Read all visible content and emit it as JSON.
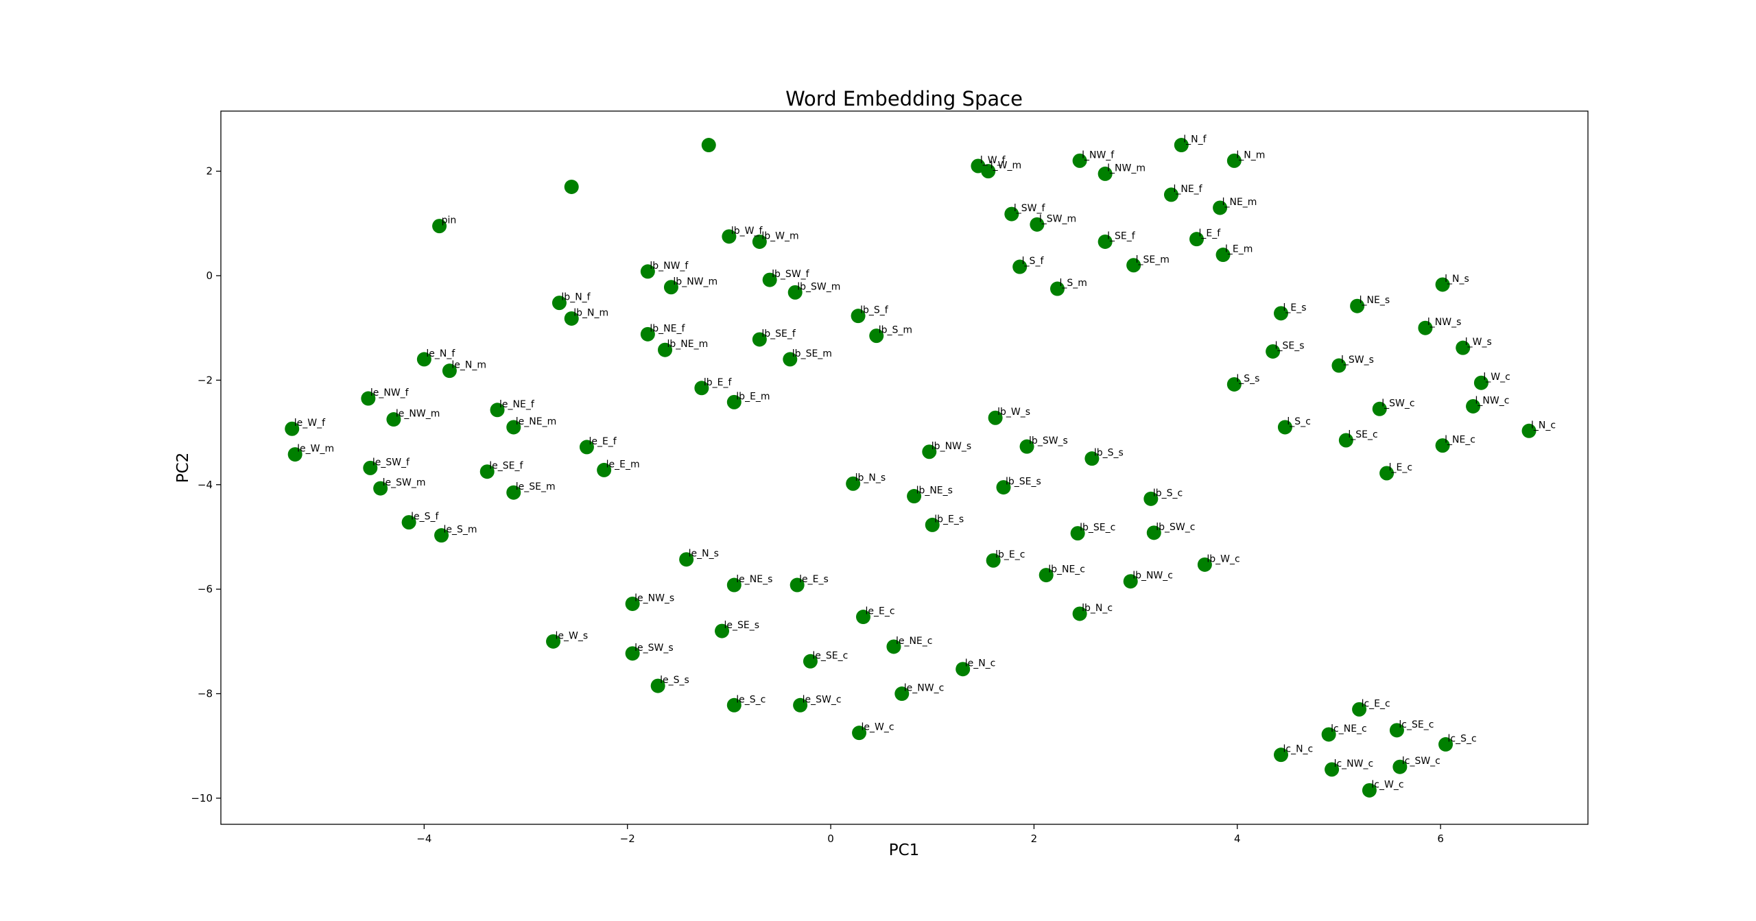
{
  "chart_data": {
    "type": "scatter",
    "title": "Word Embedding Space",
    "xlabel": "PC1",
    "ylabel": "PC2",
    "xlim": [
      -6.0,
      7.45
    ],
    "ylim": [
      -10.5,
      3.15
    ],
    "xticks": [
      -4,
      -2,
      0,
      2,
      4,
      6
    ],
    "yticks": [
      -10,
      -8,
      -6,
      -4,
      -2,
      0,
      2
    ],
    "grid": false,
    "marker_color": "#008000",
    "points": [
      {
        "label": "",
        "x": -1.2,
        "y": 2.5
      },
      {
        "label": "",
        "x": -2.55,
        "y": 1.7
      },
      {
        "label": "pin",
        "x": -3.85,
        "y": 0.95
      },
      {
        "label": "l_W_f",
        "x": 1.45,
        "y": 2.1
      },
      {
        "label": "l_W_m",
        "x": 1.55,
        "y": 2.0
      },
      {
        "label": "l_NW_f",
        "x": 2.45,
        "y": 2.2
      },
      {
        "label": "l_NW_m",
        "x": 2.7,
        "y": 1.95
      },
      {
        "label": "l_N_f",
        "x": 3.45,
        "y": 2.5
      },
      {
        "label": "l_N_m",
        "x": 3.97,
        "y": 2.2
      },
      {
        "label": "l_NE_f",
        "x": 3.35,
        "y": 1.55
      },
      {
        "label": "l_NE_m",
        "x": 3.83,
        "y": 1.3
      },
      {
        "label": "l_SW_f",
        "x": 1.78,
        "y": 1.18
      },
      {
        "label": "l_SW_m",
        "x": 2.03,
        "y": 0.98
      },
      {
        "label": "l_SE_f",
        "x": 2.7,
        "y": 0.65
      },
      {
        "label": "l_E_f",
        "x": 3.6,
        "y": 0.7
      },
      {
        "label": "l_E_m",
        "x": 3.86,
        "y": 0.4
      },
      {
        "label": "l_S_f",
        "x": 1.86,
        "y": 0.17
      },
      {
        "label": "l_SE_m",
        "x": 2.98,
        "y": 0.2
      },
      {
        "label": "l_S_m",
        "x": 2.23,
        "y": -0.25
      },
      {
        "label": "lb_W_f",
        "x": -1.0,
        "y": 0.75
      },
      {
        "label": "lb_W_m",
        "x": -0.7,
        "y": 0.65
      },
      {
        "label": "lb_NW_f",
        "x": -1.8,
        "y": 0.08
      },
      {
        "label": "lb_NW_m",
        "x": -1.57,
        "y": -0.22
      },
      {
        "label": "lb_SW_f",
        "x": -0.6,
        "y": -0.08
      },
      {
        "label": "lb_SW_m",
        "x": -0.35,
        "y": -0.32
      },
      {
        "label": "lb_N_f",
        "x": -2.67,
        "y": -0.52
      },
      {
        "label": "lb_N_m",
        "x": -2.55,
        "y": -0.82
      },
      {
        "label": "lb_S_f",
        "x": 0.27,
        "y": -0.77
      },
      {
        "label": "lb_S_m",
        "x": 0.45,
        "y": -1.15
      },
      {
        "label": "lb_NE_f",
        "x": -1.8,
        "y": -1.12
      },
      {
        "label": "lb_NE_m",
        "x": -1.63,
        "y": -1.42
      },
      {
        "label": "lb_SE_f",
        "x": -0.7,
        "y": -1.22
      },
      {
        "label": "lb_SE_m",
        "x": -0.4,
        "y": -1.6
      },
      {
        "label": "lb_E_f",
        "x": -1.27,
        "y": -2.15
      },
      {
        "label": "lb_E_m",
        "x": -0.95,
        "y": -2.42
      },
      {
        "label": "le_N_f",
        "x": -4.0,
        "y": -1.6
      },
      {
        "label": "le_N_m",
        "x": -3.75,
        "y": -1.82
      },
      {
        "label": "le_NW_f",
        "x": -4.55,
        "y": -2.35
      },
      {
        "label": "le_NW_m",
        "x": -4.3,
        "y": -2.75
      },
      {
        "label": "le_NE_f",
        "x": -3.28,
        "y": -2.57
      },
      {
        "label": "le_NE_m",
        "x": -3.12,
        "y": -2.9
      },
      {
        "label": "le_W_f",
        "x": -5.3,
        "y": -2.93
      },
      {
        "label": "le_W_m",
        "x": -5.27,
        "y": -3.42
      },
      {
        "label": "le_E_f",
        "x": -2.4,
        "y": -3.28
      },
      {
        "label": "le_E_m",
        "x": -2.23,
        "y": -3.72
      },
      {
        "label": "le_SW_f",
        "x": -4.53,
        "y": -3.68
      },
      {
        "label": "le_SW_m",
        "x": -4.43,
        "y": -4.07
      },
      {
        "label": "le_SE_f",
        "x": -3.38,
        "y": -3.75
      },
      {
        "label": "le_SE_m",
        "x": -3.12,
        "y": -4.15
      },
      {
        "label": "le_S_f",
        "x": -4.15,
        "y": -4.72
      },
      {
        "label": "le_S_m",
        "x": -3.83,
        "y": -4.97
      },
      {
        "label": "l_N_s",
        "x": 6.02,
        "y": -0.17
      },
      {
        "label": "l_E_s",
        "x": 4.43,
        "y": -0.72
      },
      {
        "label": "l_NE_s",
        "x": 5.18,
        "y": -0.58
      },
      {
        "label": "l_NW_s",
        "x": 5.85,
        "y": -1.0
      },
      {
        "label": "l_W_s",
        "x": 6.22,
        "y": -1.38
      },
      {
        "label": "l_SE_s",
        "x": 4.35,
        "y": -1.45
      },
      {
        "label": "l_SW_s",
        "x": 5.0,
        "y": -1.72
      },
      {
        "label": "l_S_s",
        "x": 3.97,
        "y": -2.08
      },
      {
        "label": "l_W_c",
        "x": 6.4,
        "y": -2.05
      },
      {
        "label": "l_NW_c",
        "x": 6.32,
        "y": -2.5
      },
      {
        "label": "l_SW_c",
        "x": 5.4,
        "y": -2.55
      },
      {
        "label": "l_S_c",
        "x": 4.47,
        "y": -2.9
      },
      {
        "label": "l_N_c",
        "x": 6.87,
        "y": -2.97
      },
      {
        "label": "l_SE_c",
        "x": 5.07,
        "y": -3.15
      },
      {
        "label": "l_NE_c",
        "x": 6.02,
        "y": -3.25
      },
      {
        "label": "l_E_c",
        "x": 5.47,
        "y": -3.78
      },
      {
        "label": "lb_W_s",
        "x": 1.62,
        "y": -2.72
      },
      {
        "label": "lb_NW_s",
        "x": 0.97,
        "y": -3.37
      },
      {
        "label": "lb_SW_s",
        "x": 1.93,
        "y": -3.27
      },
      {
        "label": "lb_S_s",
        "x": 2.57,
        "y": -3.5
      },
      {
        "label": "lb_N_s",
        "x": 0.22,
        "y": -3.98
      },
      {
        "label": "lb_NE_s",
        "x": 0.82,
        "y": -4.22
      },
      {
        "label": "lb_SE_s",
        "x": 1.7,
        "y": -4.05
      },
      {
        "label": "lb_S_c",
        "x": 3.15,
        "y": -4.27
      },
      {
        "label": "lb_E_s",
        "x": 1.0,
        "y": -4.77
      },
      {
        "label": "lb_SE_c",
        "x": 2.43,
        "y": -4.93
      },
      {
        "label": "lb_SW_c",
        "x": 3.18,
        "y": -4.92
      },
      {
        "label": "lb_E_c",
        "x": 1.6,
        "y": -5.45
      },
      {
        "label": "lb_W_c",
        "x": 3.68,
        "y": -5.53
      },
      {
        "label": "lb_NE_c",
        "x": 2.12,
        "y": -5.73
      },
      {
        "label": "lb_NW_c",
        "x": 2.95,
        "y": -5.85
      },
      {
        "label": "lb_N_c",
        "x": 2.45,
        "y": -6.47
      },
      {
        "label": "le_N_s",
        "x": -1.42,
        "y": -5.43
      },
      {
        "label": "le_NE_s",
        "x": -0.95,
        "y": -5.92
      },
      {
        "label": "le_E_s",
        "x": -0.33,
        "y": -5.92
      },
      {
        "label": "le_NW_s",
        "x": -1.95,
        "y": -6.28
      },
      {
        "label": "le_E_c",
        "x": 0.32,
        "y": -6.53
      },
      {
        "label": "le_SE_s",
        "x": -1.07,
        "y": -6.8
      },
      {
        "label": "le_W_s",
        "x": -2.73,
        "y": -7.0
      },
      {
        "label": "le_NE_c",
        "x": 0.62,
        "y": -7.1
      },
      {
        "label": "le_SW_s",
        "x": -1.95,
        "y": -7.23
      },
      {
        "label": "le_SE_c",
        "x": -0.2,
        "y": -7.38
      },
      {
        "label": "le_N_c",
        "x": 1.3,
        "y": -7.53
      },
      {
        "label": "le_S_s",
        "x": -1.7,
        "y": -7.85
      },
      {
        "label": "le_NW_c",
        "x": 0.7,
        "y": -8.0
      },
      {
        "label": "le_S_c",
        "x": -0.95,
        "y": -8.22
      },
      {
        "label": "le_SW_c",
        "x": -0.3,
        "y": -8.22
      },
      {
        "label": "le_W_c",
        "x": 0.28,
        "y": -8.75
      },
      {
        "label": "lc_E_c",
        "x": 5.2,
        "y": -8.3
      },
      {
        "label": "lc_SE_c",
        "x": 5.57,
        "y": -8.7
      },
      {
        "label": "lc_NE_c",
        "x": 4.9,
        "y": -8.78
      },
      {
        "label": "lc_S_c",
        "x": 6.05,
        "y": -8.97
      },
      {
        "label": "lc_N_c",
        "x": 4.43,
        "y": -9.17
      },
      {
        "label": "lc_SW_c",
        "x": 5.6,
        "y": -9.4
      },
      {
        "label": "lc_NW_c",
        "x": 4.93,
        "y": -9.45
      },
      {
        "label": "lc_W_c",
        "x": 5.3,
        "y": -9.85
      }
    ]
  }
}
